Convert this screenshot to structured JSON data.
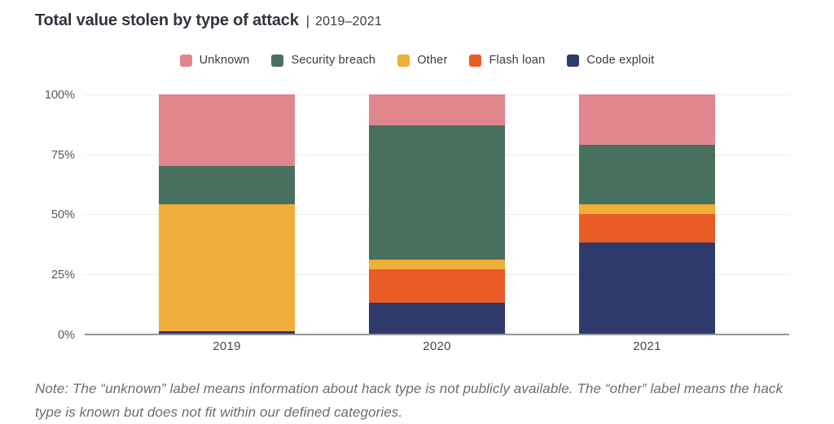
{
  "title": {
    "main": "Total value stolen by type of attack",
    "separator": "|",
    "period": "2019–2021"
  },
  "legend": [
    {
      "label": "Unknown",
      "color": "#e0878d"
    },
    {
      "label": "Security breach",
      "color": "#47705f"
    },
    {
      "label": "Other",
      "color": "#f0ae3a"
    },
    {
      "label": "Flash loan",
      "color": "#ea5c26"
    },
    {
      "label": "Code exploit",
      "color": "#2e3a6b"
    }
  ],
  "chart_data": {
    "type": "bar",
    "stacked": true,
    "unit": "percent",
    "title": "Total value stolen by type of attack | 2019–2021",
    "categories": [
      "2019",
      "2020",
      "2021"
    ],
    "series": [
      {
        "name": "Code exploit",
        "color": "#2e3a6b",
        "values": [
          1,
          13,
          38
        ]
      },
      {
        "name": "Flash loan",
        "color": "#ea5c26",
        "values": [
          0,
          14,
          12
        ]
      },
      {
        "name": "Other",
        "color": "#f0ae3a",
        "values": [
          53,
          4,
          4
        ]
      },
      {
        "name": "Security breach",
        "color": "#47705f",
        "values": [
          16,
          56,
          25
        ]
      },
      {
        "name": "Unknown",
        "color": "#e0878d",
        "values": [
          30,
          13,
          21
        ]
      }
    ],
    "y_ticks": [
      "0%",
      "25%",
      "50%",
      "75%",
      "100%"
    ],
    "ylim": [
      0,
      100
    ],
    "grid": true,
    "legend_position": "top"
  },
  "note": "Note: The “unknown” label means information about hack type is not publicly available. The “other” label means the hack type is known but does not fit within our defined categories."
}
